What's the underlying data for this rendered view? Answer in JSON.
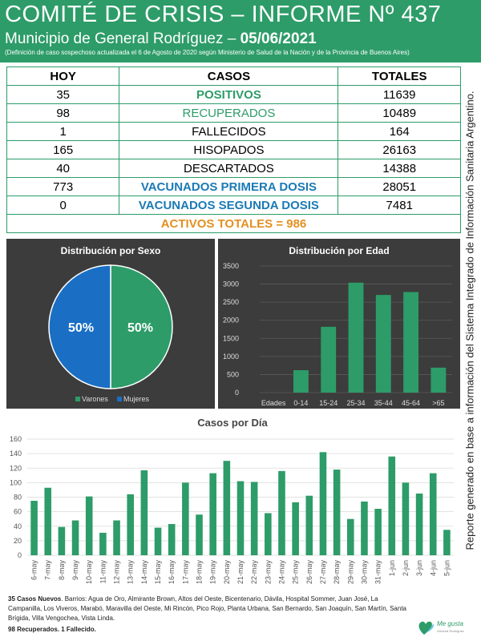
{
  "header": {
    "title": "COMITÉ DE CRISIS – INFORME Nº 437",
    "subtitle_prefix": "Municipio de General Rodríguez – ",
    "date": "05/06/2021",
    "note": "(Definición de caso sospechoso actualizada el 6 de Agosto de 2020 según Ministerio de Salud de la Nación y de la Provincia de Buenos Aires)"
  },
  "table": {
    "headers": [
      "HOY",
      "CASOS",
      "TOTALES"
    ],
    "rows": [
      {
        "hoy": "35",
        "label": "POSITIVOS",
        "total": "11639"
      },
      {
        "hoy": "98",
        "label": "RECUPERADOS",
        "total": "10489"
      },
      {
        "hoy": "1",
        "label": "FALLECIDOS",
        "total": "164"
      },
      {
        "hoy": "165",
        "label": "HISOPADOS",
        "total": "26163"
      },
      {
        "hoy": "40",
        "label": "DESCARTADOS",
        "total": "14388"
      },
      {
        "hoy": "773",
        "label": "VACUNADOS PRIMERA DOSIS",
        "total": "28051"
      },
      {
        "hoy": "0",
        "label": "VACUNADOS SEGUNDA DOSIS",
        "total": "7481"
      }
    ],
    "activos": "ACTIVOS TOTALES = 986"
  },
  "side_text": "Reporte generado en base a información del Sistema Integrado de Información Sanitaria Argentino.",
  "footer": {
    "bold_lead": "35 Casos Nuevos",
    "barrios": ". Barrios: Agua de Oro, Almirante Brown, Altos del Oeste, Bicentenario, Dávila, Hospital Sommer, Juan José, La Campanilla, Los Viveros, Marabó, Maravilla del Oeste, Mi Rincón, Pico Rojo, Planta Urbana, San Bernardo, San Joaquín, San Martín, Santa Brígida, Villa Vengochea, Vista Linda.",
    "summary": "98 Recuperados. 1 Fallecido."
  },
  "logo": {
    "text": "Me gusta",
    "subtext": "General Rodríguez"
  },
  "colors": {
    "green": "#2d9c68",
    "blue": "#1a7ab5",
    "orange": "#e39022",
    "dark_panel": "#3c3c3c"
  },
  "chart_data": [
    {
      "type": "pie",
      "title": "Distribución por Sexo",
      "labels": [
        "Varones",
        "Mujeres"
      ],
      "values": [
        50,
        50
      ],
      "data_labels": [
        "50%",
        "50%"
      ],
      "colors": [
        "#2d9c68",
        "#1a6fc4"
      ],
      "legend": "bottom"
    },
    {
      "type": "bar",
      "title": "Distribución por Edad",
      "categories": [
        "Edades",
        "0-14",
        "15-24",
        "25-34",
        "35-44",
        "45-64",
        ">65"
      ],
      "values": [
        0,
        620,
        1820,
        3040,
        2700,
        2780,
        690
      ],
      "ylim": [
        0,
        3500
      ],
      "yticks": [
        0,
        500,
        1000,
        1500,
        2000,
        2500,
        3000,
        3500
      ],
      "grid": true,
      "color": "#2d9c68"
    },
    {
      "type": "bar",
      "title": "Casos por Día",
      "categories": [
        "6-may",
        "7-may",
        "8-may",
        "9-may",
        "10-may",
        "11-may",
        "12-may",
        "13-may",
        "14-may",
        "15-may",
        "16-may",
        "17-may",
        "18-may",
        "19-may",
        "20-may",
        "21-may",
        "22-may",
        "23-may",
        "24-may",
        "25-may",
        "26-may",
        "27-may",
        "28-may",
        "29-may",
        "30-may",
        "31-may",
        "1-jun",
        "2-jun",
        "3-jun",
        "4-jun",
        "5-jun"
      ],
      "values": [
        75,
        93,
        39,
        48,
        81,
        31,
        48,
        84,
        117,
        38,
        43,
        100,
        56,
        113,
        130,
        102,
        101,
        58,
        116,
        73,
        82,
        142,
        118,
        50,
        74,
        64,
        136,
        100,
        85,
        113,
        35
      ],
      "ylim": [
        0,
        160
      ],
      "yticks": [
        0,
        20,
        40,
        60,
        80,
        100,
        120,
        140,
        160
      ],
      "grid": true,
      "color": "#2d9c68"
    }
  ]
}
